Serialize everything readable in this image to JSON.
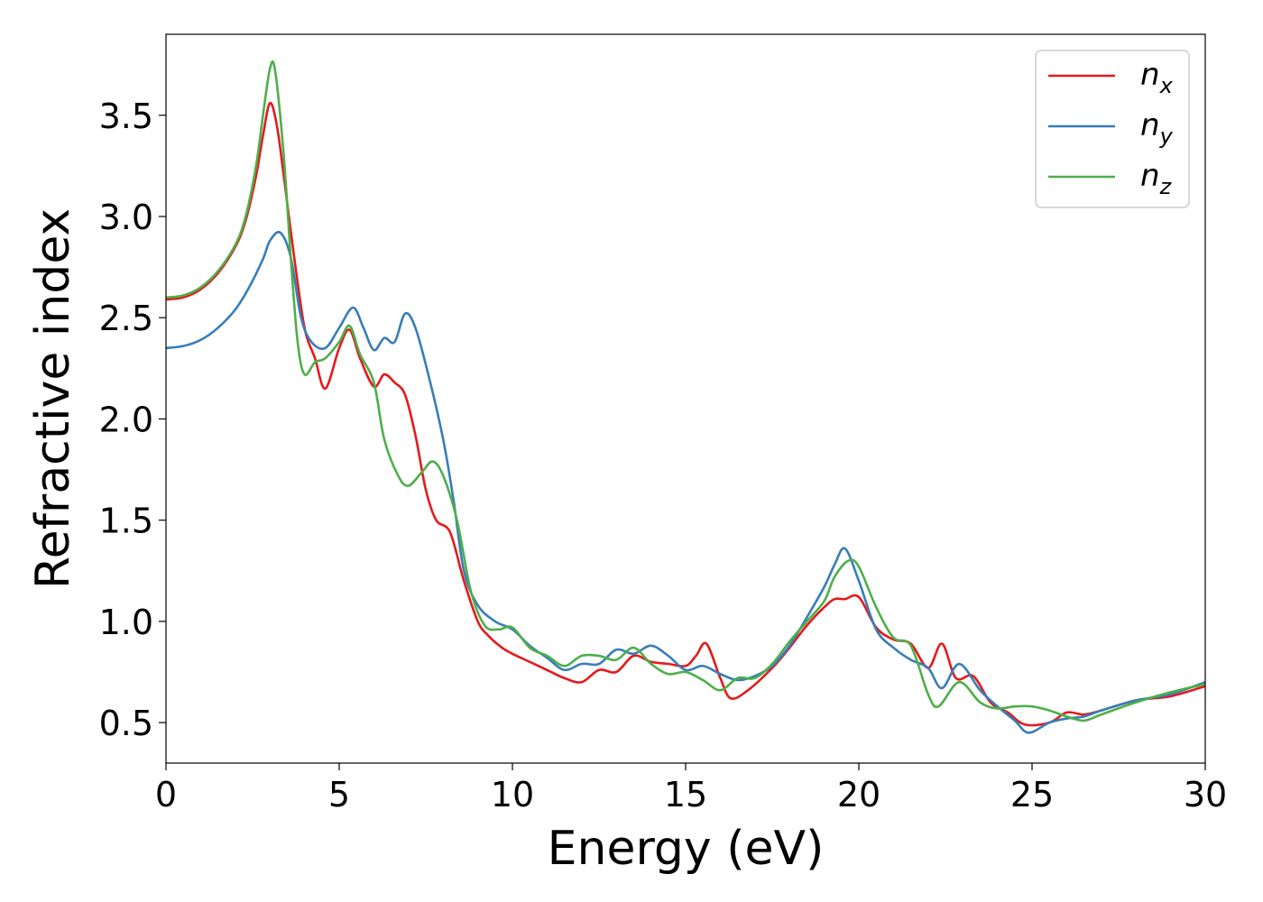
{
  "chart_data": {
    "type": "line",
    "title": "",
    "xlabel": "Energy (eV)",
    "ylabel": "Refractive index",
    "xlim": [
      0,
      30
    ],
    "ylim": [
      0.3,
      3.9
    ],
    "xticks": [
      0,
      5,
      10,
      15,
      20,
      25,
      30
    ],
    "xtick_labels": [
      "0",
      "5",
      "10",
      "15",
      "20",
      "25",
      "30"
    ],
    "yticks": [
      0.5,
      1.0,
      1.5,
      2.0,
      2.5,
      3.0,
      3.5
    ],
    "ytick_labels": [
      "0.5",
      "1.0",
      "1.5",
      "2.0",
      "2.5",
      "3.0",
      "3.5"
    ],
    "grid": false,
    "legend_position": "top-right",
    "series": [
      {
        "name": "n",
        "subscript": "x",
        "color": "#e41a1c",
        "points": [
          [
            0,
            2.59
          ],
          [
            0.5,
            2.6
          ],
          [
            1,
            2.64
          ],
          [
            1.5,
            2.72
          ],
          [
            2,
            2.85
          ],
          [
            2.3,
            2.98
          ],
          [
            2.6,
            3.2
          ],
          [
            2.8,
            3.4
          ],
          [
            3.0,
            3.56
          ],
          [
            3.2,
            3.45
          ],
          [
            3.4,
            3.2
          ],
          [
            3.7,
            2.8
          ],
          [
            4.0,
            2.45
          ],
          [
            4.3,
            2.3
          ],
          [
            4.6,
            2.15
          ],
          [
            5.0,
            2.35
          ],
          [
            5.3,
            2.44
          ],
          [
            5.6,
            2.3
          ],
          [
            6.0,
            2.16
          ],
          [
            6.3,
            2.22
          ],
          [
            6.6,
            2.18
          ],
          [
            6.9,
            2.12
          ],
          [
            7.2,
            1.92
          ],
          [
            7.5,
            1.65
          ],
          [
            7.8,
            1.5
          ],
          [
            8.2,
            1.44
          ],
          [
            8.6,
            1.2
          ],
          [
            9.0,
            1.0
          ],
          [
            9.3,
            0.93
          ],
          [
            9.7,
            0.87
          ],
          [
            10.0,
            0.84
          ],
          [
            10.5,
            0.8
          ],
          [
            11.0,
            0.76
          ],
          [
            11.5,
            0.72
          ],
          [
            12.0,
            0.7
          ],
          [
            12.5,
            0.76
          ],
          [
            13.0,
            0.75
          ],
          [
            13.5,
            0.83
          ],
          [
            14.0,
            0.8
          ],
          [
            14.5,
            0.79
          ],
          [
            15.0,
            0.78
          ],
          [
            15.3,
            0.83
          ],
          [
            15.6,
            0.89
          ],
          [
            16.0,
            0.72
          ],
          [
            16.3,
            0.62
          ],
          [
            16.8,
            0.66
          ],
          [
            17.5,
            0.77
          ],
          [
            18.0,
            0.87
          ],
          [
            18.5,
            0.98
          ],
          [
            19.0,
            1.07
          ],
          [
            19.3,
            1.11
          ],
          [
            19.6,
            1.11
          ],
          [
            20.0,
            1.12
          ],
          [
            20.5,
            0.97
          ],
          [
            21.0,
            0.91
          ],
          [
            21.5,
            0.89
          ],
          [
            22.0,
            0.77
          ],
          [
            22.4,
            0.89
          ],
          [
            22.8,
            0.72
          ],
          [
            23.3,
            0.73
          ],
          [
            23.8,
            0.6
          ],
          [
            24.3,
            0.55
          ],
          [
            24.8,
            0.49
          ],
          [
            25.5,
            0.5
          ],
          [
            26.0,
            0.55
          ],
          [
            26.5,
            0.54
          ],
          [
            27.0,
            0.56
          ],
          [
            28.0,
            0.61
          ],
          [
            29.0,
            0.63
          ],
          [
            30.0,
            0.68
          ]
        ]
      },
      {
        "name": "n",
        "subscript": "y",
        "color": "#377eb8",
        "points": [
          [
            0,
            2.35
          ],
          [
            0.5,
            2.36
          ],
          [
            1,
            2.39
          ],
          [
            1.5,
            2.45
          ],
          [
            2,
            2.54
          ],
          [
            2.4,
            2.65
          ],
          [
            2.8,
            2.79
          ],
          [
            3.0,
            2.88
          ],
          [
            3.3,
            2.92
          ],
          [
            3.6,
            2.8
          ],
          [
            3.9,
            2.5
          ],
          [
            4.2,
            2.38
          ],
          [
            4.6,
            2.35
          ],
          [
            5.0,
            2.45
          ],
          [
            5.4,
            2.55
          ],
          [
            5.7,
            2.45
          ],
          [
            6.0,
            2.34
          ],
          [
            6.3,
            2.4
          ],
          [
            6.6,
            2.38
          ],
          [
            6.9,
            2.52
          ],
          [
            7.2,
            2.45
          ],
          [
            7.6,
            2.2
          ],
          [
            8.0,
            1.9
          ],
          [
            8.3,
            1.6
          ],
          [
            8.6,
            1.25
          ],
          [
            9.0,
            1.08
          ],
          [
            9.5,
            1.0
          ],
          [
            10.0,
            0.96
          ],
          [
            10.5,
            0.88
          ],
          [
            11.0,
            0.82
          ],
          [
            11.5,
            0.76
          ],
          [
            12.0,
            0.79
          ],
          [
            12.5,
            0.79
          ],
          [
            13.0,
            0.86
          ],
          [
            13.5,
            0.84
          ],
          [
            14.0,
            0.88
          ],
          [
            14.5,
            0.83
          ],
          [
            15.0,
            0.76
          ],
          [
            15.5,
            0.78
          ],
          [
            16.0,
            0.74
          ],
          [
            16.5,
            0.71
          ],
          [
            17.0,
            0.73
          ],
          [
            17.5,
            0.78
          ],
          [
            18.0,
            0.88
          ],
          [
            18.5,
            1.02
          ],
          [
            19.0,
            1.17
          ],
          [
            19.3,
            1.28
          ],
          [
            19.6,
            1.36
          ],
          [
            20.0,
            1.2
          ],
          [
            20.5,
            0.96
          ],
          [
            21.0,
            0.87
          ],
          [
            21.5,
            0.81
          ],
          [
            22.0,
            0.77
          ],
          [
            22.4,
            0.67
          ],
          [
            22.9,
            0.79
          ],
          [
            23.5,
            0.66
          ],
          [
            24.0,
            0.58
          ],
          [
            24.5,
            0.51
          ],
          [
            24.9,
            0.45
          ],
          [
            25.5,
            0.5
          ],
          [
            26.0,
            0.52
          ],
          [
            26.5,
            0.53
          ],
          [
            27.0,
            0.56
          ],
          [
            28.0,
            0.61
          ],
          [
            29.0,
            0.64
          ],
          [
            30.0,
            0.7
          ]
        ]
      },
      {
        "name": "n",
        "subscript": "z",
        "color": "#4daf4a",
        "points": [
          [
            0,
            2.6
          ],
          [
            0.5,
            2.61
          ],
          [
            1,
            2.65
          ],
          [
            1.5,
            2.73
          ],
          [
            2,
            2.86
          ],
          [
            2.3,
            3.0
          ],
          [
            2.6,
            3.25
          ],
          [
            2.8,
            3.5
          ],
          [
            3.0,
            3.73
          ],
          [
            3.15,
            3.72
          ],
          [
            3.4,
            3.3
          ],
          [
            3.6,
            2.8
          ],
          [
            3.8,
            2.38
          ],
          [
            4.0,
            2.22
          ],
          [
            4.3,
            2.28
          ],
          [
            4.6,
            2.3
          ],
          [
            5.0,
            2.38
          ],
          [
            5.3,
            2.46
          ],
          [
            5.6,
            2.32
          ],
          [
            6.0,
            2.18
          ],
          [
            6.3,
            1.9
          ],
          [
            6.7,
            1.72
          ],
          [
            7.0,
            1.67
          ],
          [
            7.4,
            1.74
          ],
          [
            7.7,
            1.79
          ],
          [
            8.0,
            1.72
          ],
          [
            8.4,
            1.5
          ],
          [
            8.8,
            1.15
          ],
          [
            9.2,
            0.98
          ],
          [
            9.6,
            0.96
          ],
          [
            10.0,
            0.97
          ],
          [
            10.5,
            0.87
          ],
          [
            11.0,
            0.83
          ],
          [
            11.5,
            0.78
          ],
          [
            12.0,
            0.83
          ],
          [
            12.5,
            0.83
          ],
          [
            13.0,
            0.81
          ],
          [
            13.5,
            0.87
          ],
          [
            14.0,
            0.79
          ],
          [
            14.5,
            0.74
          ],
          [
            15.0,
            0.75
          ],
          [
            15.5,
            0.71
          ],
          [
            16.0,
            0.66
          ],
          [
            16.5,
            0.72
          ],
          [
            17.0,
            0.72
          ],
          [
            17.5,
            0.79
          ],
          [
            18.0,
            0.9
          ],
          [
            18.5,
            1.0
          ],
          [
            19.0,
            1.1
          ],
          [
            19.3,
            1.22
          ],
          [
            19.7,
            1.3
          ],
          [
            20.0,
            1.27
          ],
          [
            20.5,
            1.07
          ],
          [
            21.0,
            0.92
          ],
          [
            21.5,
            0.88
          ],
          [
            22.0,
            0.64
          ],
          [
            22.3,
            0.58
          ],
          [
            22.9,
            0.7
          ],
          [
            23.5,
            0.6
          ],
          [
            24.0,
            0.57
          ],
          [
            24.5,
            0.58
          ],
          [
            25.0,
            0.58
          ],
          [
            25.5,
            0.56
          ],
          [
            26.0,
            0.53
          ],
          [
            26.5,
            0.51
          ],
          [
            27.0,
            0.54
          ],
          [
            28.0,
            0.6
          ],
          [
            29.0,
            0.65
          ],
          [
            30.0,
            0.69
          ]
        ]
      }
    ]
  }
}
